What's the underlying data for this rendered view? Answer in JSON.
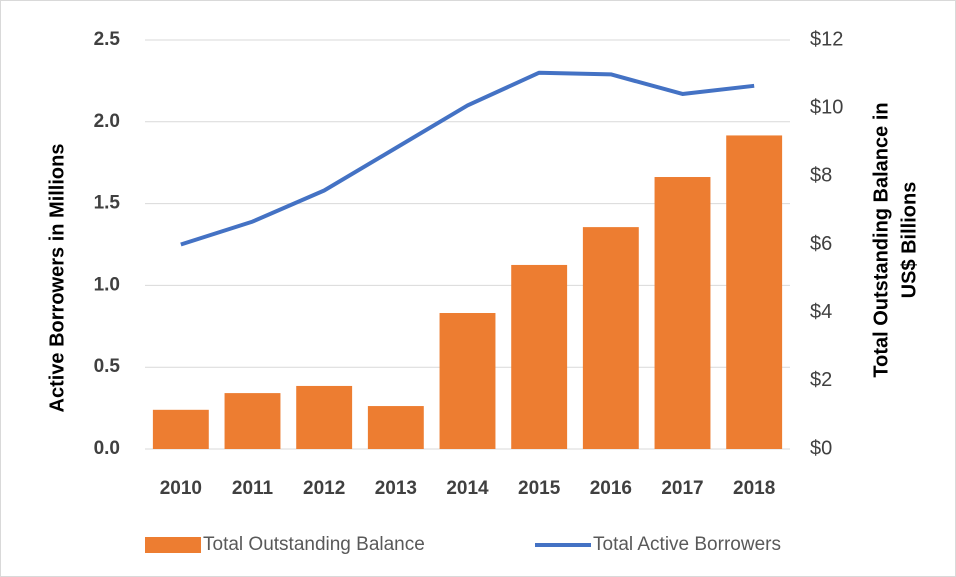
{
  "chart_data": {
    "type": "bar_line",
    "categories": [
      "2010",
      "2011",
      "2012",
      "2013",
      "2014",
      "2015",
      "2016",
      "2017",
      "2018"
    ],
    "ylabel": "Active Borrowers in Millions",
    "y2label": [
      "Total Outstanding Balance in",
      "US$ Billions"
    ],
    "ylim": [
      0,
      2.5
    ],
    "yticks": [
      {
        "value": 0,
        "label": "0.0"
      },
      0.5,
      {
        "value": 1,
        "label": "1.0"
      },
      1.5,
      {
        "value": 2,
        "label": "2.0"
      },
      2.5
    ],
    "y2lim": [
      0,
      12
    ],
    "y2ticks": [
      {
        "value": 0,
        "label": "$0"
      },
      {
        "value": 2,
        "label": "$2"
      },
      {
        "value": 4,
        "label": "$4"
      },
      {
        "value": 6,
        "label": "$6"
      },
      {
        "value": 8,
        "label": "$8"
      },
      {
        "value": 10,
        "label": "$10"
      },
      {
        "value": 12,
        "label": "$12"
      }
    ],
    "grid": true,
    "legend": "bottom",
    "series": [
      {
        "name": "Total Outstanding Balance",
        "type": "bar",
        "axis": "y2",
        "color": "#ed7d31",
        "values": [
          1.15,
          1.64,
          1.85,
          1.26,
          3.99,
          5.4,
          6.51,
          7.98,
          9.2
        ]
      },
      {
        "name": "Total Active Borrowers",
        "type": "line",
        "axis": "y",
        "color": "#4472c4",
        "values": [
          1.25,
          1.39,
          1.58,
          1.84,
          2.1,
          2.3,
          2.29,
          2.17,
          2.22
        ]
      }
    ]
  }
}
